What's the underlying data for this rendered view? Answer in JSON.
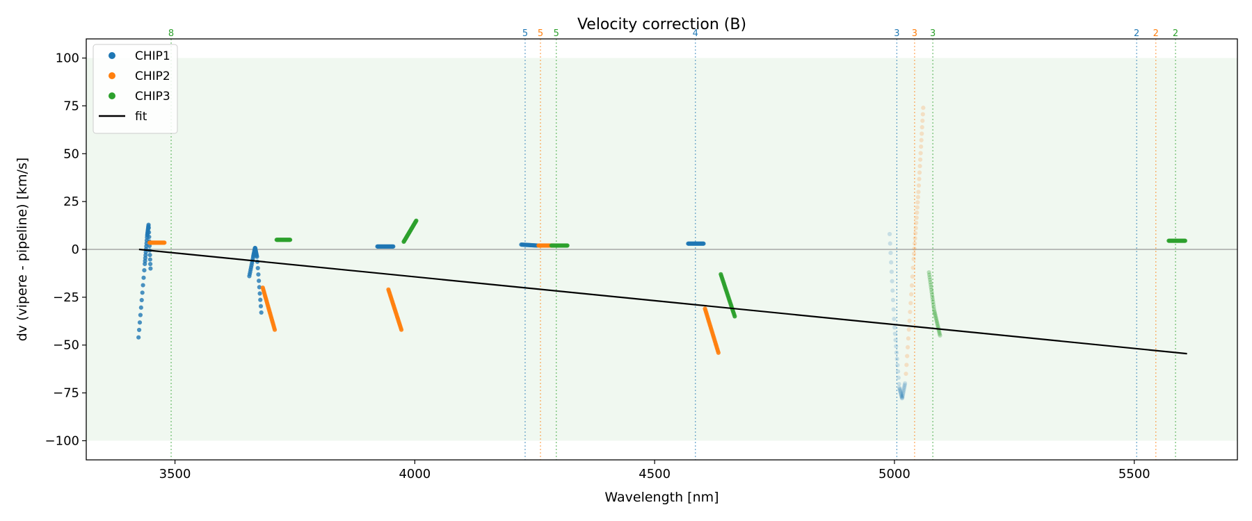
{
  "chart_data": {
    "type": "scatter",
    "title": "Velocity correction (B)",
    "xlabel": "Wavelength [nm]",
    "ylabel": "dv (vipere - pipeline) [km/s]",
    "xlim": [
      3315,
      5715
    ],
    "ylim": [
      -110,
      110
    ],
    "x_ticks": [
      3500,
      4000,
      4500,
      5000,
      5500
    ],
    "y_ticks": [
      100,
      75,
      50,
      25,
      0,
      -25,
      -50,
      -75,
      -100
    ],
    "band": {
      "y_min": -100,
      "y_max": 100,
      "color": "#2ca02c"
    },
    "zero_line": true,
    "grid": false,
    "legend_position": "top-left",
    "legend": [
      {
        "label": "CHIP1",
        "kind": "marker",
        "color": "#1f77b4"
      },
      {
        "label": "CHIP2",
        "kind": "marker",
        "color": "#ff7f0e"
      },
      {
        "label": "CHIP3",
        "kind": "marker",
        "color": "#2ca02c"
      },
      {
        "label": "fit",
        "kind": "line",
        "color": "#000000"
      }
    ],
    "fit_line": {
      "x": [
        3425,
        5610
      ],
      "y": [
        0,
        -54.5
      ],
      "color": "#000000"
    },
    "order_markers": [
      {
        "x": 3492,
        "label": "8",
        "color": "#2ca02c"
      },
      {
        "x": 4230,
        "label": "5",
        "color": "#1f77b4"
      },
      {
        "x": 4262,
        "label": "5",
        "color": "#ff7f0e"
      },
      {
        "x": 4295,
        "label": "5",
        "color": "#2ca02c"
      },
      {
        "x": 4585,
        "label": "4",
        "color": "#1f77b4"
      },
      {
        "x": 5005,
        "label": "3",
        "color": "#1f77b4"
      },
      {
        "x": 5042,
        "label": "3",
        "color": "#ff7f0e"
      },
      {
        "x": 5080,
        "label": "3",
        "color": "#2ca02c"
      },
      {
        "x": 5505,
        "label": "2",
        "color": "#1f77b4"
      },
      {
        "x": 5545,
        "label": "2",
        "color": "#ff7f0e"
      },
      {
        "x": 5586,
        "label": "2",
        "color": "#2ca02c"
      }
    ],
    "segments": [
      {
        "series": "CHIP1",
        "color": "#1f77b4",
        "alpha": 0.8,
        "n": 40,
        "x": [
          3424,
          3437,
          3442,
          3445,
          3449
        ],
        "y": [
          -46,
          -8,
          7,
          13,
          -10
        ]
      },
      {
        "series": "CHIP2",
        "color": "#ff7f0e",
        "alpha": 0.9,
        "n": 22,
        "x": [
          3447,
          3478
        ],
        "y": [
          3.5,
          3.5
        ]
      },
      {
        "series": "CHIP1",
        "color": "#1f77b4",
        "alpha": 0.8,
        "n": 36,
        "x": [
          3655,
          3663,
          3667,
          3671,
          3680
        ],
        "y": [
          -14,
          -4,
          1,
          -4,
          -33
        ]
      },
      {
        "series": "CHIP2",
        "color": "#ff7f0e",
        "alpha": 0.9,
        "n": 26,
        "x": [
          3683,
          3708
        ],
        "y": [
          -20,
          -42
        ]
      },
      {
        "series": "CHIP3",
        "color": "#2ca02c",
        "alpha": 0.9,
        "n": 22,
        "x": [
          3712,
          3740
        ],
        "y": [
          5,
          5
        ]
      },
      {
        "series": "CHIP1",
        "color": "#1f77b4",
        "alpha": 0.9,
        "n": 26,
        "x": [
          3922,
          3955
        ],
        "y": [
          1.5,
          1.5
        ]
      },
      {
        "series": "CHIP2",
        "color": "#ff7f0e",
        "alpha": 0.9,
        "n": 26,
        "x": [
          3945,
          3972
        ],
        "y": [
          -21,
          -42
        ]
      },
      {
        "series": "CHIP3",
        "color": "#2ca02c",
        "alpha": 0.9,
        "n": 26,
        "x": [
          3977,
          4003
        ],
        "y": [
          4,
          15
        ]
      },
      {
        "series": "CHIP1",
        "color": "#1f77b4",
        "alpha": 0.8,
        "n": 24,
        "x": [
          4222,
          4255
        ],
        "y": [
          2.5,
          2
        ]
      },
      {
        "series": "CHIP2",
        "color": "#ff7f0e",
        "alpha": 0.9,
        "n": 24,
        "x": [
          4258,
          4290
        ],
        "y": [
          2,
          2
        ]
      },
      {
        "series": "CHIP3",
        "color": "#2ca02c",
        "alpha": 0.9,
        "n": 24,
        "x": [
          4285,
          4318
        ],
        "y": [
          2,
          2
        ]
      },
      {
        "series": "CHIP1",
        "color": "#1f77b4",
        "alpha": 0.9,
        "n": 22,
        "x": [
          4570,
          4602
        ],
        "y": [
          3,
          3
        ]
      },
      {
        "series": "CHIP2",
        "color": "#ff7f0e",
        "alpha": 0.9,
        "n": 26,
        "x": [
          4605,
          4633
        ],
        "y": [
          -31,
          -54
        ]
      },
      {
        "series": "CHIP3",
        "color": "#2ca02c",
        "alpha": 0.9,
        "n": 26,
        "x": [
          4638,
          4667
        ],
        "y": [
          -13,
          -35
        ]
      },
      {
        "series": "CHIP1",
        "color": "#1f77b4",
        "alpha": 0.2,
        "n": 40,
        "x": [
          4990,
          5000,
          5010,
          5016,
          5022
        ],
        "y": [
          8,
          -40,
          -72,
          -78,
          -70
        ]
      },
      {
        "series": "CHIP2",
        "color": "#ff7f0e",
        "alpha": 0.2,
        "n": 40,
        "x": [
          5024,
          5040,
          5050,
          5060
        ],
        "y": [
          -65,
          -5,
          30,
          74
        ]
      },
      {
        "series": "CHIP3",
        "color": "#2ca02c",
        "alpha": 0.3,
        "n": 32,
        "x": [
          5072,
          5083,
          5095
        ],
        "y": [
          -12,
          -32,
          -45
        ]
      },
      {
        "series": "CHIP3",
        "color": "#2ca02c",
        "alpha": 0.9,
        "n": 22,
        "x": [
          5572,
          5606
        ],
        "y": [
          4.5,
          4.5
        ]
      }
    ]
  }
}
